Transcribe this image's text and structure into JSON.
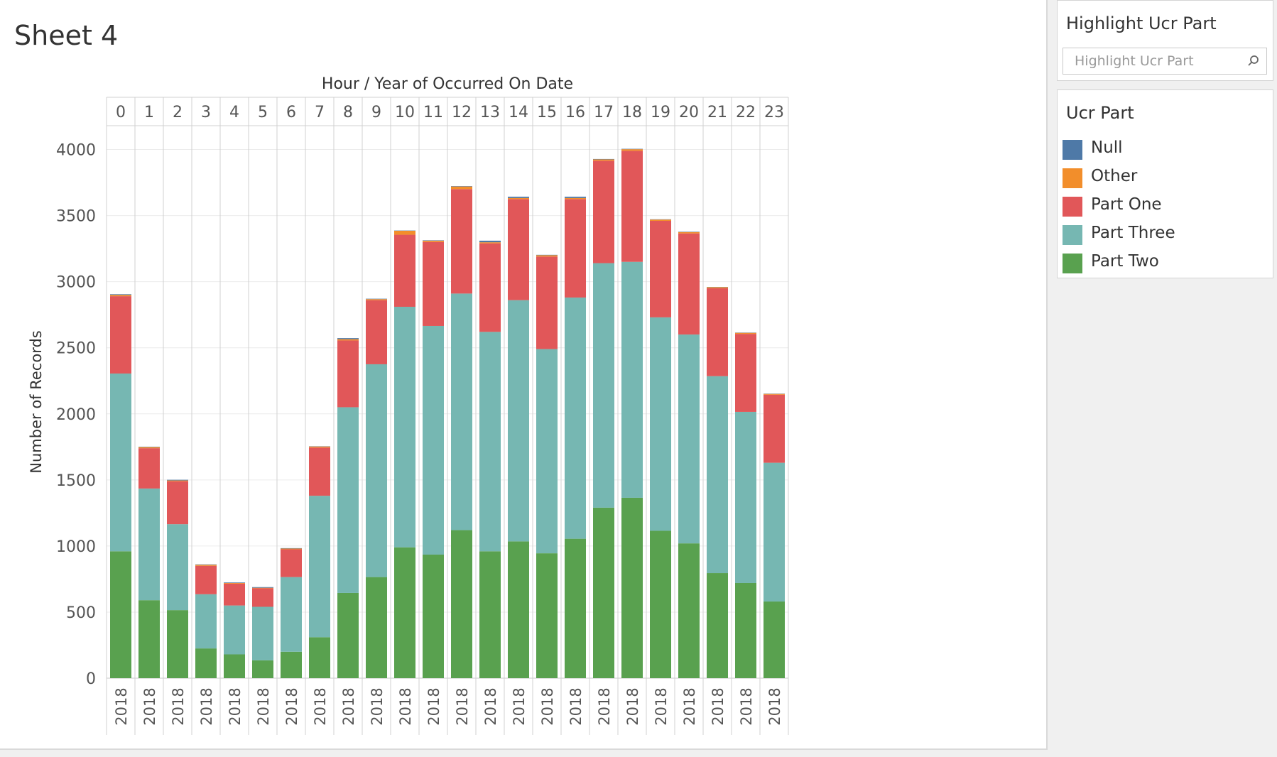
{
  "sheet": {
    "title": "Sheet 4"
  },
  "highlight_filter": {
    "title": "Highlight Ucr Part",
    "placeholder": "Highlight Ucr Part",
    "icon": "search-icon"
  },
  "legend": {
    "title": "Ucr Part",
    "items": [
      {
        "label": "Null",
        "color": "#4e79a7"
      },
      {
        "label": "Other",
        "color": "#f28e2b"
      },
      {
        "label": "Part One",
        "color": "#e15759"
      },
      {
        "label": "Part Three",
        "color": "#76b7b2"
      },
      {
        "label": "Part Two",
        "color": "#59a14f"
      }
    ]
  },
  "chart_data": {
    "type": "bar",
    "stacked": true,
    "title": "",
    "column_header": "Hour / Year of Occurred On Date",
    "categories": [
      "0",
      "1",
      "2",
      "3",
      "4",
      "5",
      "6",
      "7",
      "8",
      "9",
      "10",
      "11",
      "12",
      "13",
      "14",
      "15",
      "16",
      "17",
      "18",
      "19",
      "20",
      "21",
      "22",
      "23"
    ],
    "sub_category_label": "2018",
    "xlabel": "",
    "ylabel": "Number of Records",
    "yticks": [
      0,
      500,
      1000,
      1500,
      2000,
      2500,
      3000,
      3500,
      4000
    ],
    "ylim": [
      0,
      4180
    ],
    "grid": true,
    "legend_position": "right",
    "series": [
      {
        "name": "Part Two",
        "color": "#59a14f",
        "values": [
          960,
          590,
          515,
          225,
          180,
          135,
          200,
          310,
          645,
          765,
          990,
          935,
          1120,
          960,
          1035,
          945,
          1055,
          1290,
          1365,
          1115,
          1020,
          795,
          720,
          580
        ]
      },
      {
        "name": "Part Three",
        "color": "#76b7b2",
        "values": [
          1345,
          845,
          650,
          410,
          370,
          405,
          565,
          1070,
          1405,
          1610,
          1820,
          1730,
          1790,
          1660,
          1825,
          1545,
          1825,
          1850,
          1785,
          1615,
          1580,
          1490,
          1295,
          1050
        ]
      },
      {
        "name": "Part One",
        "color": "#e15759",
        "values": [
          585,
          305,
          325,
          215,
          165,
          140,
          210,
          365,
          505,
          485,
          545,
          635,
          790,
          670,
          765,
          700,
          745,
          775,
          840,
          730,
          765,
          665,
          590,
          515
        ]
      },
      {
        "name": "Other",
        "color": "#f28e2b",
        "values": [
          10,
          8,
          6,
          8,
          5,
          4,
          6,
          8,
          10,
          8,
          30,
          10,
          20,
          8,
          8,
          10,
          8,
          10,
          12,
          10,
          10,
          8,
          8,
          6
        ]
      },
      {
        "name": "Null",
        "color": "#4e79a7",
        "values": [
          5,
          3,
          5,
          3,
          4,
          5,
          3,
          2,
          8,
          3,
          2,
          3,
          3,
          12,
          10,
          3,
          10,
          3,
          3,
          2,
          3,
          2,
          2,
          2
        ]
      }
    ]
  }
}
